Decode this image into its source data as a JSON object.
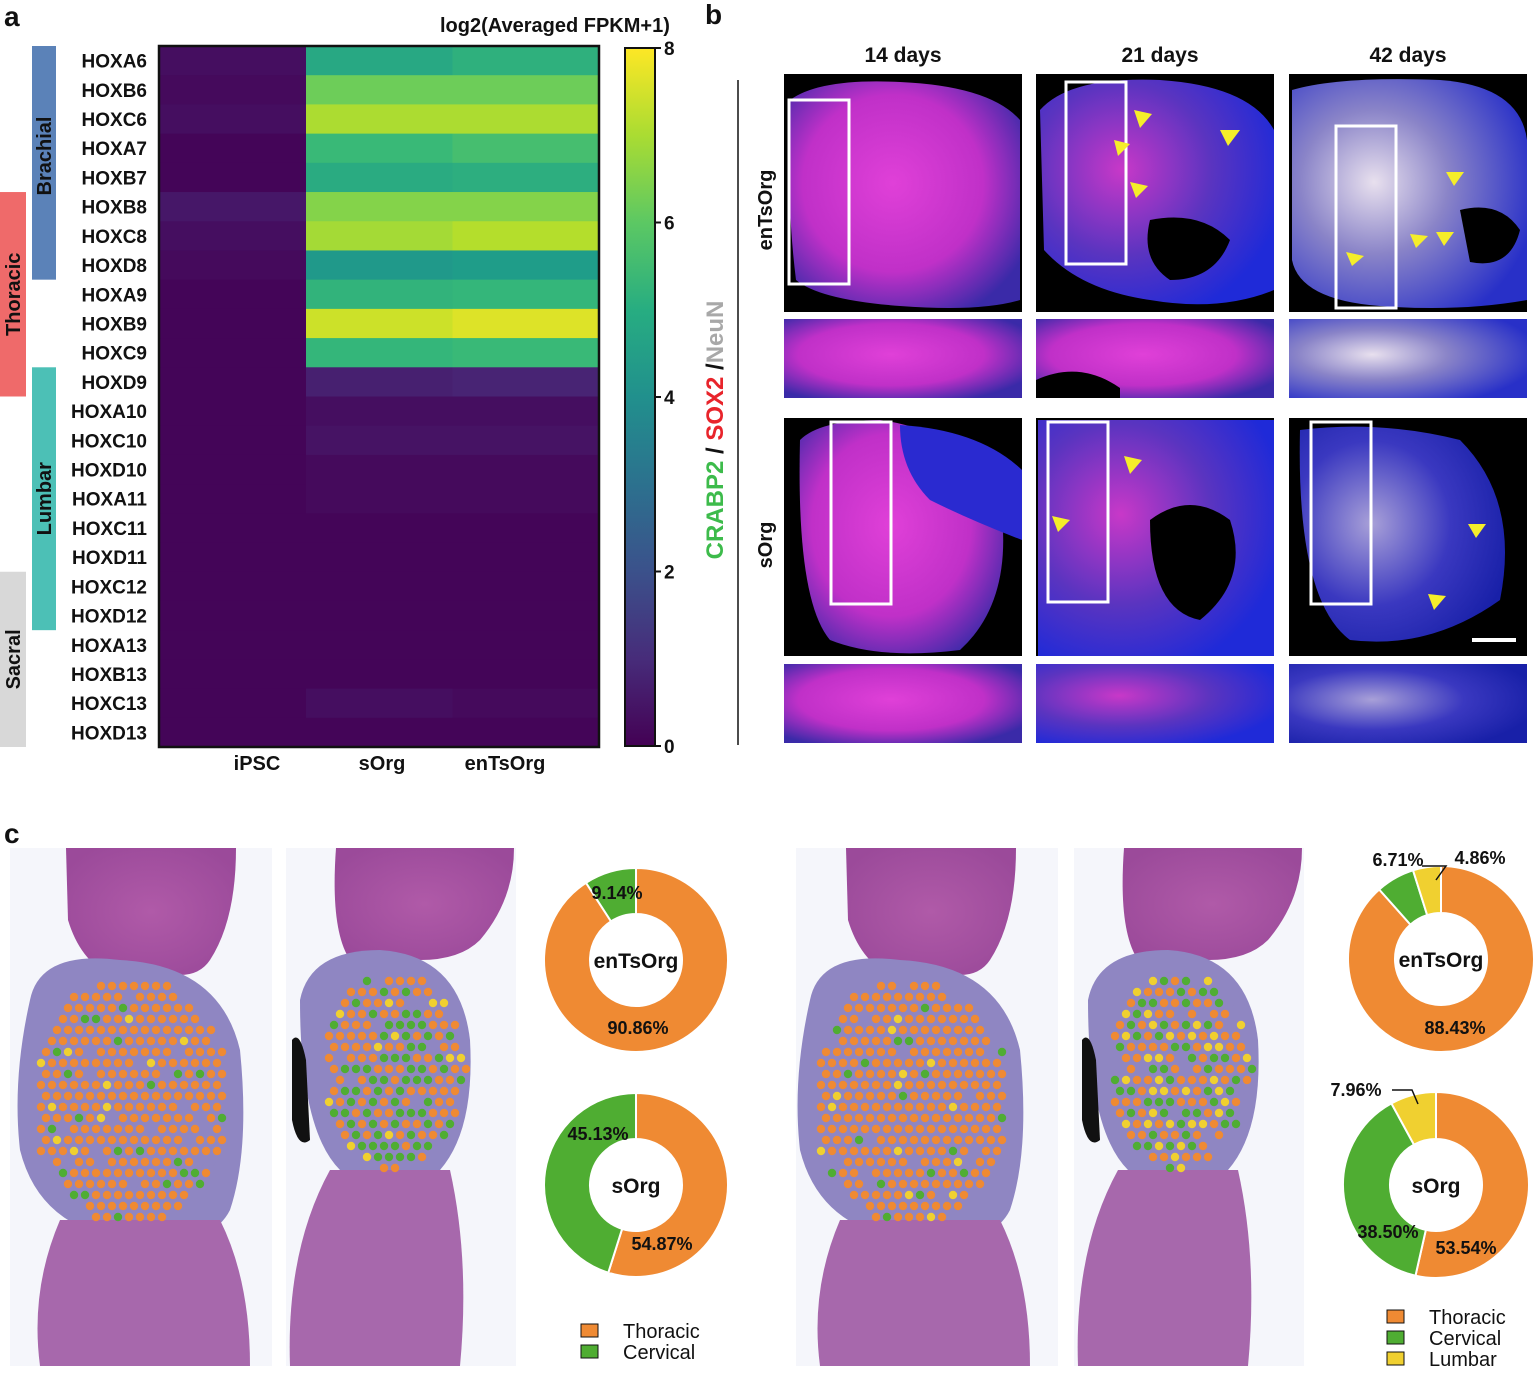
{
  "panel_labels": {
    "a": "a",
    "b": "b",
    "c": "c"
  },
  "heatmap": {
    "colorbar_title": "log2(Averaged FPKM+1)",
    "colorbar_ticks": [
      "0",
      "2",
      "4",
      "6",
      "8"
    ],
    "columns": [
      "iPSC",
      "sOrg",
      "enTsOrg"
    ],
    "rows": [
      "HOXA6",
      "HOXB6",
      "HOXC6",
      "HOXA7",
      "HOXB7",
      "HOXB8",
      "HOXC8",
      "HOXD8",
      "HOXA9",
      "HOXB9",
      "HOXC9",
      "HOXD9",
      "HOXA10",
      "HOXC10",
      "HOXD10",
      "HOXA11",
      "HOXC11",
      "HOXD11",
      "HOXC12",
      "HOXD12",
      "HOXA13",
      "HOXB13",
      "HOXC13",
      "HOXD13"
    ],
    "regions": [
      {
        "name": "Brachial",
        "color": "#5b82b8",
        "rows": [
          0,
          7
        ]
      },
      {
        "name": "Thoracic",
        "color": "#ef6a6a",
        "rows": [
          5,
          11
        ]
      },
      {
        "name": "Lumbar",
        "color": "#4cc0b6",
        "rows": [
          11,
          19
        ]
      },
      {
        "name": "Sacral",
        "color": "#d8d8d8",
        "rows": [
          18,
          23
        ]
      }
    ]
  },
  "chart_data": [
    {
      "type": "heatmap",
      "title": "",
      "x": [
        "iPSC",
        "sOrg",
        "enTsOrg"
      ],
      "y": [
        "HOXA6",
        "HOXB6",
        "HOXC6",
        "HOXA7",
        "HOXB7",
        "HOXB8",
        "HOXC8",
        "HOXD8",
        "HOXA9",
        "HOXB9",
        "HOXC9",
        "HOXD9",
        "HOXA10",
        "HOXC10",
        "HOXD10",
        "HOXA11",
        "HOXC11",
        "HOXD11",
        "HOXC12",
        "HOXD12",
        "HOXA13",
        "HOXB13",
        "HOXC13",
        "HOXD13"
      ],
      "values": [
        [
          0.3,
          4.8,
          5.1
        ],
        [
          0.2,
          6.2,
          6.2
        ],
        [
          0.3,
          7.0,
          7.0
        ],
        [
          0.1,
          5.4,
          5.6
        ],
        [
          0.1,
          4.9,
          5.0
        ],
        [
          0.5,
          6.5,
          6.5
        ],
        [
          0.3,
          6.9,
          7.1
        ],
        [
          0.2,
          4.3,
          4.4
        ],
        [
          0.1,
          5.2,
          5.3
        ],
        [
          0.1,
          7.4,
          7.6
        ],
        [
          0.1,
          5.3,
          5.4
        ],
        [
          0.1,
          0.7,
          0.8
        ],
        [
          0.1,
          0.3,
          0.3
        ],
        [
          0.1,
          0.4,
          0.4
        ],
        [
          0.1,
          0.2,
          0.2
        ],
        [
          0.1,
          0.2,
          0.2
        ],
        [
          0.1,
          0.1,
          0.1
        ],
        [
          0.1,
          0.1,
          0.1
        ],
        [
          0.1,
          0.1,
          0.1
        ],
        [
          0.1,
          0.1,
          0.1
        ],
        [
          0.1,
          0.1,
          0.1
        ],
        [
          0.1,
          0.1,
          0.1
        ],
        [
          0.1,
          0.3,
          0.2
        ],
        [
          0.1,
          0.1,
          0.1
        ]
      ],
      "colorscale": "viridis",
      "zlim": [
        0,
        8
      ],
      "colorbar_label": "log2(Averaged FPKM+1)"
    },
    {
      "type": "pie",
      "title": "enTsOrg",
      "labels": [
        "Thoracic",
        "Cervical"
      ],
      "values": [
        90.86,
        9.14
      ],
      "value_labels": [
        "90.86%",
        "9.14%"
      ],
      "colors": [
        "#ef8a33",
        "#4fad32"
      ]
    },
    {
      "type": "pie",
      "title": "sOrg",
      "labels": [
        "Thoracic",
        "Cervical"
      ],
      "values": [
        54.87,
        45.13
      ],
      "value_labels": [
        "54.87%",
        "45.13%"
      ],
      "colors": [
        "#ef8a33",
        "#4fad32"
      ]
    },
    {
      "type": "pie",
      "title": "enTsOrg",
      "labels": [
        "Thoracic",
        "Cervical",
        "Lumbar"
      ],
      "values": [
        88.43,
        6.71,
        4.86
      ],
      "value_labels": [
        "88.43%",
        "6.71%",
        "4.86%"
      ],
      "colors": [
        "#ef8a33",
        "#4fad32",
        "#f0d030"
      ]
    },
    {
      "type": "pie",
      "title": "sOrg",
      "labels": [
        "Thoracic",
        "Cervical",
        "Lumbar"
      ],
      "values": [
        53.54,
        38.5,
        7.96
      ],
      "value_labels": [
        "53.54%",
        "38.50%",
        "7.96%"
      ],
      "colors": [
        "#ef8a33",
        "#4fad32",
        "#f0d030"
      ]
    }
  ],
  "microscopy": {
    "timepoints": [
      "14 days",
      "21 days",
      "42 days"
    ],
    "row_labels": [
      "enTsOrg",
      "sOrg"
    ],
    "stain_label": {
      "crabp2": "CRABP2",
      "sep1": " / ",
      "sox2": "SOX2",
      "sep2": " /",
      "neun": "NeuN"
    },
    "colors": {
      "crabp2": "#3dbb4b",
      "sox2": "#e8242b",
      "neun": "#a8a8a8"
    }
  },
  "legends": {
    "left": [
      {
        "label": "Thoracic",
        "color": "#ef8a33"
      },
      {
        "label": "Cervical",
        "color": "#4fad32"
      }
    ],
    "right": [
      {
        "label": "Thoracic",
        "color": "#ef8a33"
      },
      {
        "label": "Cervical",
        "color": "#4fad32"
      },
      {
        "label": "Lumbar",
        "color": "#f0d030"
      }
    ]
  }
}
